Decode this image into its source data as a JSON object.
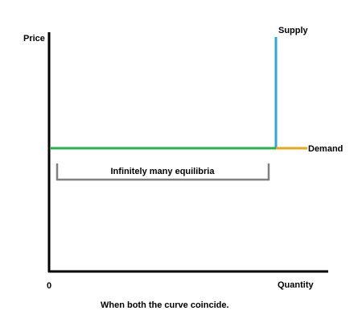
{
  "labels": {
    "y_axis": "Price",
    "x_axis": "Quantity",
    "origin": "0",
    "supply": "Supply",
    "demand": "Demand",
    "bracket": "Infinitely many equilibria",
    "caption": "When both the curve coincide."
  },
  "colors": {
    "axis": "#000000",
    "supply": "#2aa8dc",
    "demand": "#e6a817",
    "coincide": "#22b14c",
    "bracket": "#808080"
  }
}
